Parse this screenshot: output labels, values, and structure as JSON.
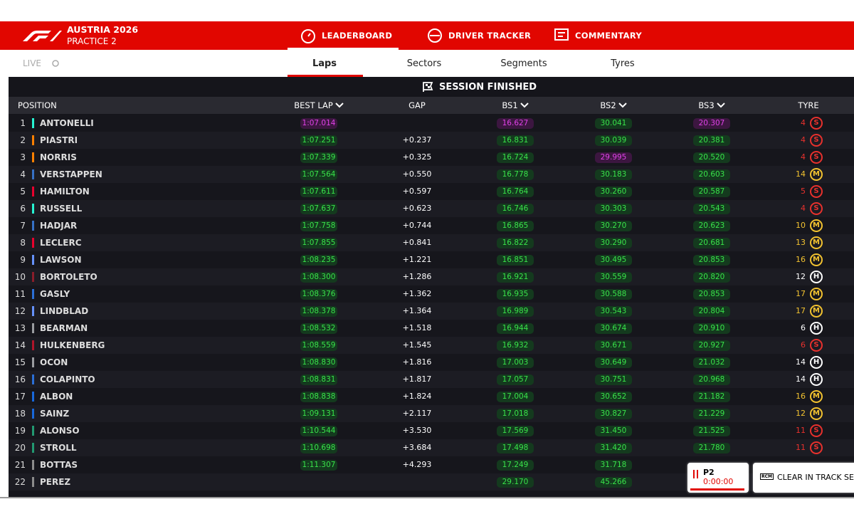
{
  "header": {
    "event": "AUSTRIA 2026",
    "session": "PRACTICE 2",
    "tabs": [
      "LEADERBOARD",
      "DRIVER TRACKER",
      "COMMENTARY"
    ]
  },
  "subnav": {
    "live": "LIVE",
    "tabs": [
      "Laps",
      "Sectors",
      "Segments",
      "Tyres"
    ]
  },
  "table": {
    "banner": "SESSION FINISHED",
    "columns": [
      "POSITION",
      "BEST LAP",
      "GAP",
      "BS1",
      "BS2",
      "BS3",
      "TYRE"
    ],
    "rows": [
      {
        "position": 1,
        "driver": "ANTONELLI",
        "team_color": "#27f4d2",
        "best_lap": "1:07.014",
        "best_lap_status": "purple",
        "bs1": "16.627",
        "bs1_status": "purple",
        "bs2": "30.041",
        "bs2_status": "green",
        "bs3": "20.307",
        "bs3_status": "purple",
        "tyre_laps": 4,
        "tyre": "S"
      },
      {
        "position": 2,
        "driver": "PIASTRI",
        "team_color": "#ff8000",
        "best_lap": "1:07.251",
        "best_lap_status": "green",
        "gap": "+0.237",
        "bs1": "16.831",
        "bs1_status": "green",
        "bs2": "30.039",
        "bs2_status": "green",
        "bs3": "20.381",
        "bs3_status": "green",
        "tyre_laps": 4,
        "tyre": "S"
      },
      {
        "position": 3,
        "driver": "NORRIS",
        "team_color": "#ff8000",
        "best_lap": "1:07.339",
        "best_lap_status": "green",
        "gap": "+0.325",
        "bs1": "16.724",
        "bs1_status": "green",
        "bs2": "29.995",
        "bs2_status": "purple",
        "bs3": "20.520",
        "bs3_status": "green",
        "tyre_laps": 4,
        "tyre": "S"
      },
      {
        "position": 4,
        "driver": "VERSTAPPEN",
        "team_color": "#3671c6",
        "best_lap": "1:07.564",
        "best_lap_status": "green",
        "gap": "+0.550",
        "bs1": "16.778",
        "bs1_status": "green",
        "bs2": "30.183",
        "bs2_status": "green",
        "bs3": "20.603",
        "bs3_status": "green",
        "tyre_laps": 14,
        "tyre": "M"
      },
      {
        "position": 5,
        "driver": "HAMILTON",
        "team_color": "#e8002d",
        "best_lap": "1:07.611",
        "best_lap_status": "green",
        "gap": "+0.597",
        "bs1": "16.764",
        "bs1_status": "green",
        "bs2": "30.260",
        "bs2_status": "green",
        "bs3": "20.587",
        "bs3_status": "green",
        "tyre_laps": 5,
        "tyre": "S"
      },
      {
        "position": 6,
        "driver": "RUSSELL",
        "team_color": "#27f4d2",
        "best_lap": "1:07.637",
        "best_lap_status": "green",
        "gap": "+0.623",
        "bs1": "16.746",
        "bs1_status": "green",
        "bs2": "30.303",
        "bs2_status": "green",
        "bs3": "20.543",
        "bs3_status": "green",
        "tyre_laps": 4,
        "tyre": "S"
      },
      {
        "position": 7,
        "driver": "HADJAR",
        "team_color": "#3671c6",
        "best_lap": "1:07.758",
        "best_lap_status": "green",
        "gap": "+0.744",
        "bs1": "16.865",
        "bs1_status": "green",
        "bs2": "30.270",
        "bs2_status": "green",
        "bs3": "20.623",
        "bs3_status": "green",
        "tyre_laps": 10,
        "tyre": "M"
      },
      {
        "position": 8,
        "driver": "LECLERC",
        "team_color": "#e8002d",
        "best_lap": "1:07.855",
        "best_lap_status": "green",
        "gap": "+0.841",
        "bs1": "16.822",
        "bs1_status": "green",
        "bs2": "30.290",
        "bs2_status": "green",
        "bs3": "20.681",
        "bs3_status": "green",
        "tyre_laps": 13,
        "tyre": "M"
      },
      {
        "position": 9,
        "driver": "LAWSON",
        "team_color": "#6692ff",
        "best_lap": "1:08.235",
        "best_lap_status": "green",
        "gap": "+1.221",
        "bs1": "16.851",
        "bs1_status": "green",
        "bs2": "30.495",
        "bs2_status": "green",
        "bs3": "20.853",
        "bs3_status": "green",
        "tyre_laps": 16,
        "tyre": "M"
      },
      {
        "position": 10,
        "driver": "BORTOLETO",
        "team_color": "#8a1d2a",
        "best_lap": "1:08.300",
        "best_lap_status": "green",
        "gap": "+1.286",
        "bs1": "16.921",
        "bs1_status": "green",
        "bs2": "30.559",
        "bs2_status": "green",
        "bs3": "20.820",
        "bs3_status": "green",
        "tyre_laps": 12,
        "tyre": "H"
      },
      {
        "position": 11,
        "driver": "GASLY",
        "team_color": "#2b6fd6",
        "best_lap": "1:08.376",
        "best_lap_status": "green",
        "gap": "+1.362",
        "bs1": "16.935",
        "bs1_status": "green",
        "bs2": "30.588",
        "bs2_status": "green",
        "bs3": "20.853",
        "bs3_status": "green",
        "tyre_laps": 17,
        "tyre": "M"
      },
      {
        "position": 12,
        "driver": "LINDBLAD",
        "team_color": "#6692ff",
        "best_lap": "1:08.378",
        "best_lap_status": "green",
        "gap": "+1.364",
        "bs1": "16.989",
        "bs1_status": "green",
        "bs2": "30.543",
        "bs2_status": "green",
        "bs3": "20.804",
        "bs3_status": "green",
        "tyre_laps": 17,
        "tyre": "M"
      },
      {
        "position": 13,
        "driver": "BEARMAN",
        "team_color": "#9a9ca0",
        "best_lap": "1:08.532",
        "best_lap_status": "green",
        "gap": "+1.518",
        "bs1": "16.944",
        "bs1_status": "green",
        "bs2": "30.674",
        "bs2_status": "green",
        "bs3": "20.910",
        "bs3_status": "green",
        "tyre_laps": 6,
        "tyre": "H"
      },
      {
        "position": 14,
        "driver": "HULKENBERG",
        "team_color": "#b0152a",
        "best_lap": "1:08.559",
        "best_lap_status": "green",
        "gap": "+1.545",
        "bs1": "16.932",
        "bs1_status": "green",
        "bs2": "30.671",
        "bs2_status": "green",
        "bs3": "20.927",
        "bs3_status": "green",
        "tyre_laps": 6,
        "tyre": "S"
      },
      {
        "position": 15,
        "driver": "OCON",
        "team_color": "#9a9ca0",
        "best_lap": "1:08.830",
        "best_lap_status": "green",
        "gap": "+1.816",
        "bs1": "17.003",
        "bs1_status": "green",
        "bs2": "30.649",
        "bs2_status": "green",
        "bs3": "21.032",
        "bs3_status": "green",
        "tyre_laps": 14,
        "tyre": "H"
      },
      {
        "position": 16,
        "driver": "COLAPINTO",
        "team_color": "#2b6fd6",
        "best_lap": "1:08.831",
        "best_lap_status": "green",
        "gap": "+1.817",
        "bs1": "17.057",
        "bs1_status": "green",
        "bs2": "30.751",
        "bs2_status": "green",
        "bs3": "20.968",
        "bs3_status": "green",
        "tyre_laps": 14,
        "tyre": "H"
      },
      {
        "position": 17,
        "driver": "ALBON",
        "team_color": "#1868db",
        "best_lap": "1:08.838",
        "best_lap_status": "green",
        "gap": "+1.824",
        "bs1": "17.004",
        "bs1_status": "green",
        "bs2": "30.652",
        "bs2_status": "green",
        "bs3": "21.182",
        "bs3_status": "green",
        "tyre_laps": 16,
        "tyre": "M"
      },
      {
        "position": 18,
        "driver": "SAINZ",
        "team_color": "#1868db",
        "best_lap": "1:09.131",
        "best_lap_status": "green",
        "gap": "+2.117",
        "bs1": "17.018",
        "bs1_status": "green",
        "bs2": "30.827",
        "bs2_status": "green",
        "bs3": "21.229",
        "bs3_status": "green",
        "tyre_laps": 12,
        "tyre": "M"
      },
      {
        "position": 19,
        "driver": "ALONSO",
        "team_color": "#229971",
        "best_lap": "1:10.544",
        "best_lap_status": "green",
        "gap": "+3.530",
        "bs1": "17.569",
        "bs1_status": "green",
        "bs2": "31.450",
        "bs2_status": "green",
        "bs3": "21.525",
        "bs3_status": "green",
        "tyre_laps": 11,
        "tyre": "S"
      },
      {
        "position": 20,
        "driver": "STROLL",
        "team_color": "#229971",
        "best_lap": "1:10.698",
        "best_lap_status": "green",
        "gap": "+3.684",
        "bs1": "17.498",
        "bs1_status": "green",
        "bs2": "31.420",
        "bs2_status": "green",
        "bs3": "21.780",
        "bs3_status": "green",
        "tyre_laps": 11,
        "tyre": "S"
      },
      {
        "position": 21,
        "driver": "BOTTAS",
        "team_color": "#8c8c8c",
        "best_lap": "1:11.307",
        "best_lap_status": "green",
        "gap": "+4.293",
        "bs1": "17.249",
        "bs1_status": "green",
        "bs2": "31.718",
        "bs2_status": "green"
      },
      {
        "position": 22,
        "driver": "PEREZ",
        "team_color": "#8c8c8c",
        "bs1": "29.170",
        "bs1_status": "green",
        "bs2": "45.266",
        "bs2_status": "green"
      }
    ]
  },
  "popups": {
    "session": "P2",
    "clock": "0:00:00",
    "rcm": "RCM",
    "message": "CLEAR IN TRACK SECTOR"
  }
}
